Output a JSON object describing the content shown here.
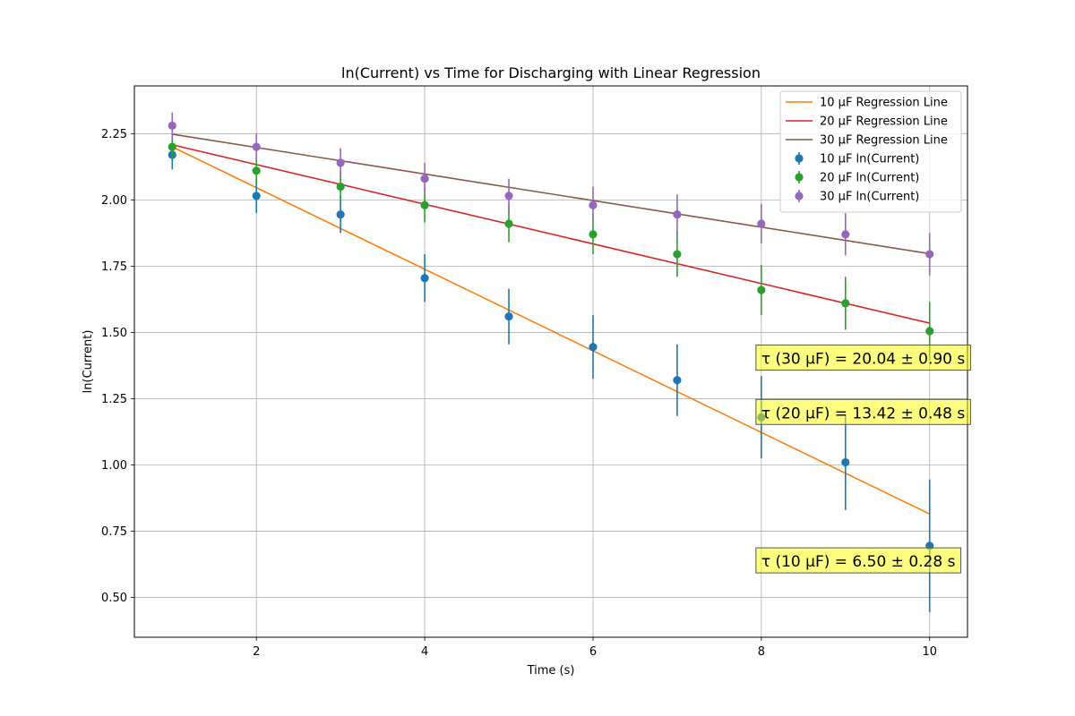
{
  "chart_data": {
    "type": "scatter",
    "title": "ln(Current) vs Time for Discharging with Linear Regression",
    "xlabel": "Time (s)",
    "ylabel": "ln(Current)",
    "xlim": [
      0.55,
      10.45
    ],
    "ylim": [
      0.35,
      2.43
    ],
    "x_ticks": [
      2,
      4,
      6,
      8,
      10
    ],
    "x_tick_labels": [
      "2",
      "4",
      "6",
      "8",
      "10"
    ],
    "y_ticks": [
      0.5,
      0.75,
      1.0,
      1.25,
      1.5,
      1.75,
      2.0,
      2.25
    ],
    "y_tick_labels": [
      "0.50",
      "0.75",
      "1.00",
      "1.25",
      "1.50",
      "1.75",
      "2.00",
      "2.25"
    ],
    "grid": true,
    "legend_position": "top-right",
    "x": [
      1,
      2,
      3,
      4,
      5,
      6,
      7,
      8,
      9,
      10
    ],
    "series": [
      {
        "name": "10 μF ln(Current)",
        "color": "#1f77b4",
        "y": [
          2.17,
          2.015,
          1.945,
          1.705,
          1.56,
          1.445,
          1.32,
          1.18,
          1.01,
          0.695
        ],
        "yerr": [
          0.055,
          0.065,
          0.07,
          0.09,
          0.105,
          0.12,
          0.135,
          0.155,
          0.18,
          0.25
        ]
      },
      {
        "name": "20 μF ln(Current)",
        "color": "#2ca02c",
        "y": [
          2.2,
          2.11,
          2.05,
          1.98,
          1.91,
          1.87,
          1.795,
          1.66,
          1.61,
          1.505
        ],
        "yerr": [
          0.045,
          0.05,
          0.055,
          0.065,
          0.07,
          0.075,
          0.085,
          0.095,
          0.1,
          0.11
        ]
      },
      {
        "name": "30 μF ln(Current)",
        "color": "#9467bd",
        "y": [
          2.28,
          2.2,
          2.14,
          2.08,
          2.015,
          1.98,
          1.945,
          1.91,
          1.87,
          1.795
        ],
        "yerr": [
          0.05,
          0.05,
          0.055,
          0.06,
          0.065,
          0.07,
          0.075,
          0.075,
          0.08,
          0.08
        ]
      }
    ],
    "regression_lines": [
      {
        "name": "10 μF Regression Line",
        "color": "#ff7f0e",
        "x": [
          1,
          10
        ],
        "y": [
          2.2,
          0.815
        ]
      },
      {
        "name": "20 μF Regression Line",
        "color": "#d62728",
        "x": [
          1,
          10
        ],
        "y": [
          2.208,
          1.535
        ]
      },
      {
        "name": "30 μF Regression Line",
        "color": "#8c564b",
        "x": [
          1,
          10
        ],
        "y": [
          2.248,
          1.797
        ]
      }
    ],
    "annotations": [
      {
        "text": "τ (30 μF) = 20.04 ± 0.90 s",
        "x": 8.0,
        "y": 1.405
      },
      {
        "text": "τ (20 μF) = 13.42 ± 0.48 s",
        "x": 8.0,
        "y": 1.2
      },
      {
        "text": "τ (10 μF) = 6.50 ± 0.28 s",
        "x": 8.0,
        "y": 0.64
      }
    ],
    "annotation_box_color": "#ffff00"
  }
}
